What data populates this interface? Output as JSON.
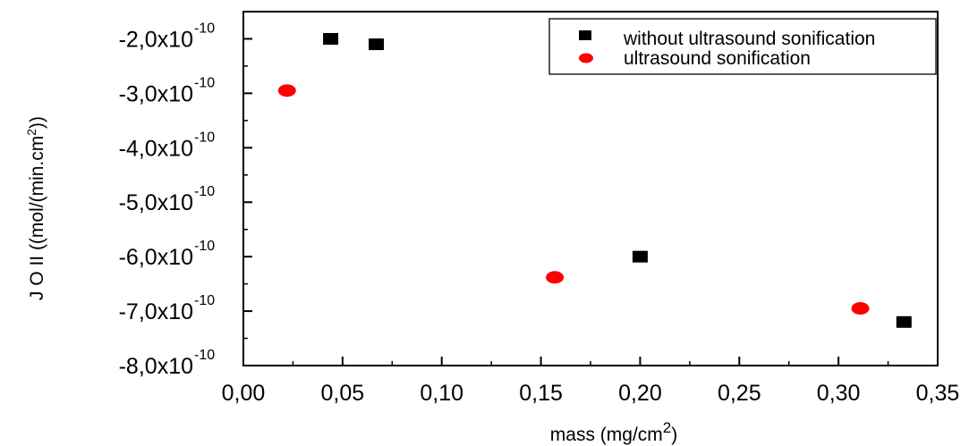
{
  "chart_data": {
    "type": "scatter",
    "xlabel": "mass (mg/cm²)",
    "ylabel": "J O II ((mol/(min.cm²))",
    "xlim": [
      0.0,
      0.35
    ],
    "ylim": [
      -8e-10,
      -1.5e-10
    ],
    "x_ticks": [
      {
        "value": 0.0,
        "label": "0,00"
      },
      {
        "value": 0.05,
        "label": "0,05"
      },
      {
        "value": 0.1,
        "label": "0,10"
      },
      {
        "value": 0.15,
        "label": "0,15"
      },
      {
        "value": 0.2,
        "label": "0,20"
      },
      {
        "value": 0.25,
        "label": "0,25"
      },
      {
        "value": 0.3,
        "label": "0,30"
      },
      {
        "value": 0.35,
        "label": "0,35"
      }
    ],
    "y_ticks": [
      {
        "value": -2e-10,
        "mantissa": "-2,0x10",
        "exponent": "-10"
      },
      {
        "value": -3e-10,
        "mantissa": "-3,0x10",
        "exponent": "-10"
      },
      {
        "value": -4e-10,
        "mantissa": "-4,0x10",
        "exponent": "-10"
      },
      {
        "value": -5e-10,
        "mantissa": "-5,0x10",
        "exponent": "-10"
      },
      {
        "value": -6e-10,
        "mantissa": "-6,0x10",
        "exponent": "-10"
      },
      {
        "value": -7e-10,
        "mantissa": "-7,0x10",
        "exponent": "-10"
      },
      {
        "value": -8e-10,
        "mantissa": "-8,0x10",
        "exponent": "-10"
      }
    ],
    "series": [
      {
        "name": "without ultrasound sonification",
        "marker": "square",
        "color": "#000000",
        "points": [
          {
            "x": 0.044,
            "y": -2e-10
          },
          {
            "x": 0.067,
            "y": -2.1e-10
          },
          {
            "x": 0.2,
            "y": -6e-10
          },
          {
            "x": 0.333,
            "y": -7.2e-10
          }
        ]
      },
      {
        "name": "ultrasound sonification",
        "marker": "circle",
        "color": "#ff0000",
        "points": [
          {
            "x": 0.022,
            "y": -2.95e-10
          },
          {
            "x": 0.157,
            "y": -6.38e-10
          },
          {
            "x": 0.311,
            "y": -6.95e-10
          }
        ]
      }
    ],
    "grid": false,
    "legend_position": "top-right"
  }
}
